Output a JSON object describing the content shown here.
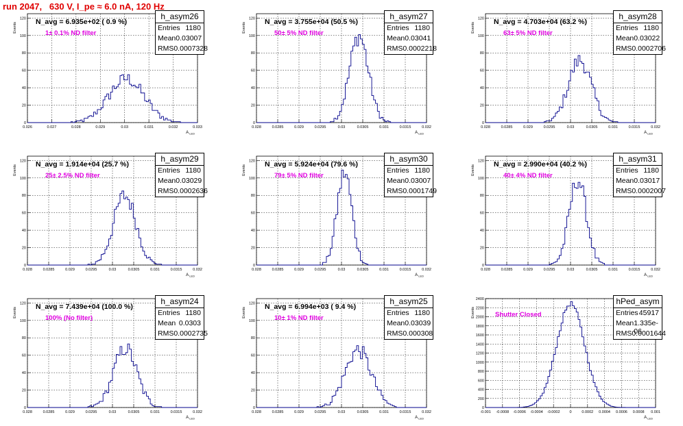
{
  "header": {
    "title": "run 2047,   630 V, I_pe ≈ 6.0 nA, 120 Hz"
  },
  "stats_labels": {
    "entries": "Entries",
    "mean": "Mean",
    "rms": "RMS"
  },
  "colors": {
    "histogram": "#00008b",
    "annotation": "#e000e0",
    "title": "#e00000"
  },
  "chart_data": [
    {
      "type": "histogram",
      "name": "h_asym26",
      "nav_text": "N_avg = 6.935e+02 ( 0.9 %)",
      "filter_text": "1± 0.1% ND filter",
      "entries": "1180",
      "mean": "0.03007",
      "rms": "0.0007328",
      "ylabel": "Events",
      "xlabel": "A",
      "xlim": [
        0.026,
        0.033
      ],
      "ylim": [
        0,
        125
      ],
      "xticks": [
        "0.026",
        "0.027",
        "0.028",
        "0.029",
        "0.03",
        "0.031",
        "0.032",
        "0.033"
      ],
      "yticks": [
        "0",
        "20",
        "40",
        "60",
        "80",
        "100",
        "120"
      ],
      "dist": {
        "mu": 0.03007,
        "sigma": 0.0007328,
        "peak": 50
      }
    },
    {
      "type": "histogram",
      "name": "h_asym27",
      "nav_text": "N_avg = 3.755e+04 (50.5 %)",
      "filter_text": "50± 5% ND filter",
      "entries": "1180",
      "mean": "0.03041",
      "rms": "0.0002218",
      "ylabel": "Events",
      "xlabel": "A",
      "xlim": [
        0.028,
        0.032
      ],
      "ylim": [
        0,
        125
      ],
      "xticks": [
        "0.028",
        "0.0285",
        "0.029",
        "0.0295",
        "0.03",
        "0.0305",
        "0.031",
        "0.0315",
        "0.032"
      ],
      "yticks": [
        "0",
        "20",
        "40",
        "60",
        "80",
        "100",
        "120"
      ],
      "dist": {
        "mu": 0.03041,
        "sigma": 0.0002218,
        "peak": 100
      }
    },
    {
      "type": "histogram",
      "name": "h_asym28",
      "nav_text": "N_avg = 4.703e+04 (63.2 %)",
      "filter_text": "63± 5% ND filter",
      "entries": "1180",
      "mean": "0.03022",
      "rms": "0.0002706",
      "ylabel": "Events",
      "xlabel": "A",
      "xlim": [
        0.028,
        0.032
      ],
      "ylim": [
        0,
        125
      ],
      "xticks": [
        "0.028",
        "0.0285",
        "0.029",
        "0.0295",
        "0.03",
        "0.0305",
        "0.031",
        "0.0315",
        "0.032"
      ],
      "yticks": [
        "0",
        "20",
        "40",
        "60",
        "80",
        "100",
        "120"
      ],
      "dist": {
        "mu": 0.03022,
        "sigma": 0.0002706,
        "peak": 72
      }
    },
    {
      "type": "histogram",
      "name": "h_asym29",
      "nav_text": "N_avg = 1.914e+04 (25.7 %)",
      "filter_text": "25± 2.5% ND filter",
      "entries": "1180",
      "mean": "0.03029",
      "rms": "0.0002636",
      "ylabel": "Events",
      "xlabel": "A",
      "xlim": [
        0.028,
        0.032
      ],
      "ylim": [
        0,
        125
      ],
      "xticks": [
        "0.028",
        "0.0285",
        "0.029",
        "0.0295",
        "0.03",
        "0.0305",
        "0.031",
        "0.0315",
        "0.032"
      ],
      "yticks": [
        "0",
        "20",
        "40",
        "60",
        "80",
        "100",
        "120"
      ],
      "dist": {
        "mu": 0.03029,
        "sigma": 0.0002636,
        "peak": 80
      }
    },
    {
      "type": "histogram",
      "name": "h_asym30",
      "nav_text": "N_avg = 5.924e+04 (79.6 %)",
      "filter_text": "79± 5% ND filter",
      "entries": "1180",
      "mean": "0.03007",
      "rms": "0.0001749",
      "ylabel": "Events",
      "xlabel": "A",
      "xlim": [
        0.028,
        0.032
      ],
      "ylim": [
        0,
        125
      ],
      "xticks": [
        "0.028",
        "0.0285",
        "0.029",
        "0.0295",
        "0.03",
        "0.0305",
        "0.031",
        "0.0315",
        "0.032"
      ],
      "yticks": [
        "0",
        "20",
        "40",
        "60",
        "80",
        "100",
        "120"
      ],
      "dist": {
        "mu": 0.03007,
        "sigma": 0.0001749,
        "peak": 106
      }
    },
    {
      "type": "histogram",
      "name": "h_asym31",
      "nav_text": "N_avg = 2.990e+04 (40.2 %)",
      "filter_text": "40± 4% ND filter",
      "entries": "1180",
      "mean": "0.03017",
      "rms": "0.0002007",
      "ylabel": "Events",
      "xlabel": "A",
      "xlim": [
        0.028,
        0.032
      ],
      "ylim": [
        0,
        125
      ],
      "xticks": [
        "0.028",
        "0.0285",
        "0.029",
        "0.0295",
        "0.03",
        "0.0305",
        "0.031",
        "0.0315",
        "0.032"
      ],
      "yticks": [
        "0",
        "20",
        "40",
        "60",
        "80",
        "100",
        "120"
      ],
      "dist": {
        "mu": 0.03017,
        "sigma": 0.0002007,
        "peak": 98
      }
    },
    {
      "type": "histogram",
      "name": "h_asym24",
      "nav_text": "N_avg = 7.439e+04 (100.0 %)",
      "filter_text": "100% (No filter)",
      "entries": "1180",
      "mean": "0.0303",
      "rms": "0.0002735",
      "ylabel": "Events",
      "xlabel": "A",
      "xlim": [
        0.028,
        0.032
      ],
      "ylim": [
        0,
        125
      ],
      "xticks": [
        "0.028",
        "0.0285",
        "0.029",
        "0.0295",
        "0.03",
        "0.0305",
        "0.031",
        "0.0315",
        "0.032"
      ],
      "yticks": [
        "0",
        "20",
        "40",
        "60",
        "80",
        "100",
        "120"
      ],
      "dist": {
        "mu": 0.0303,
        "sigma": 0.0002735,
        "peak": 68
      }
    },
    {
      "type": "histogram",
      "name": "h_asym25",
      "nav_text": "N_avg = 6.994e+03 ( 9.4 %)",
      "filter_text": "10± 1% ND filter",
      "entries": "1180",
      "mean": "0.03039",
      "rms": "0.000308",
      "ylabel": "Events",
      "xlabel": "A",
      "xlim": [
        0.028,
        0.032
      ],
      "ylim": [
        0,
        125
      ],
      "xticks": [
        "0.028",
        "0.0285",
        "0.029",
        "0.0295",
        "0.03",
        "0.0305",
        "0.031",
        "0.0315",
        "0.032"
      ],
      "yticks": [
        "0",
        "20",
        "40",
        "60",
        "80",
        "100",
        "120"
      ],
      "dist": {
        "mu": 0.03039,
        "sigma": 0.000308,
        "peak": 66
      }
    },
    {
      "type": "histogram",
      "name": "hPed_asym",
      "nav_text": "",
      "filter_text": "Shutter Closed",
      "entries": "45917",
      "mean": "1.335e-06",
      "rms": "0.0001644",
      "ylabel": "Events",
      "xlabel": "A",
      "xlim": [
        -0.001,
        0.001
      ],
      "ylim": [
        0,
        2400
      ],
      "xticks": [
        "-0.001",
        "-0.0008",
        "-0.0006",
        "-0.0004",
        "-0.0002",
        "0",
        "0.0002",
        "0.0004",
        "0.0006",
        "0.0008",
        "0.001"
      ],
      "yticks": [
        "0",
        "200",
        "400",
        "600",
        "800",
        "1000",
        "1200",
        "1400",
        "1600",
        "1800",
        "2000",
        "2200",
        "2400"
      ],
      "dist": {
        "mu": 1.3e-06,
        "sigma": 0.0001644,
        "peak": 2290
      }
    }
  ]
}
